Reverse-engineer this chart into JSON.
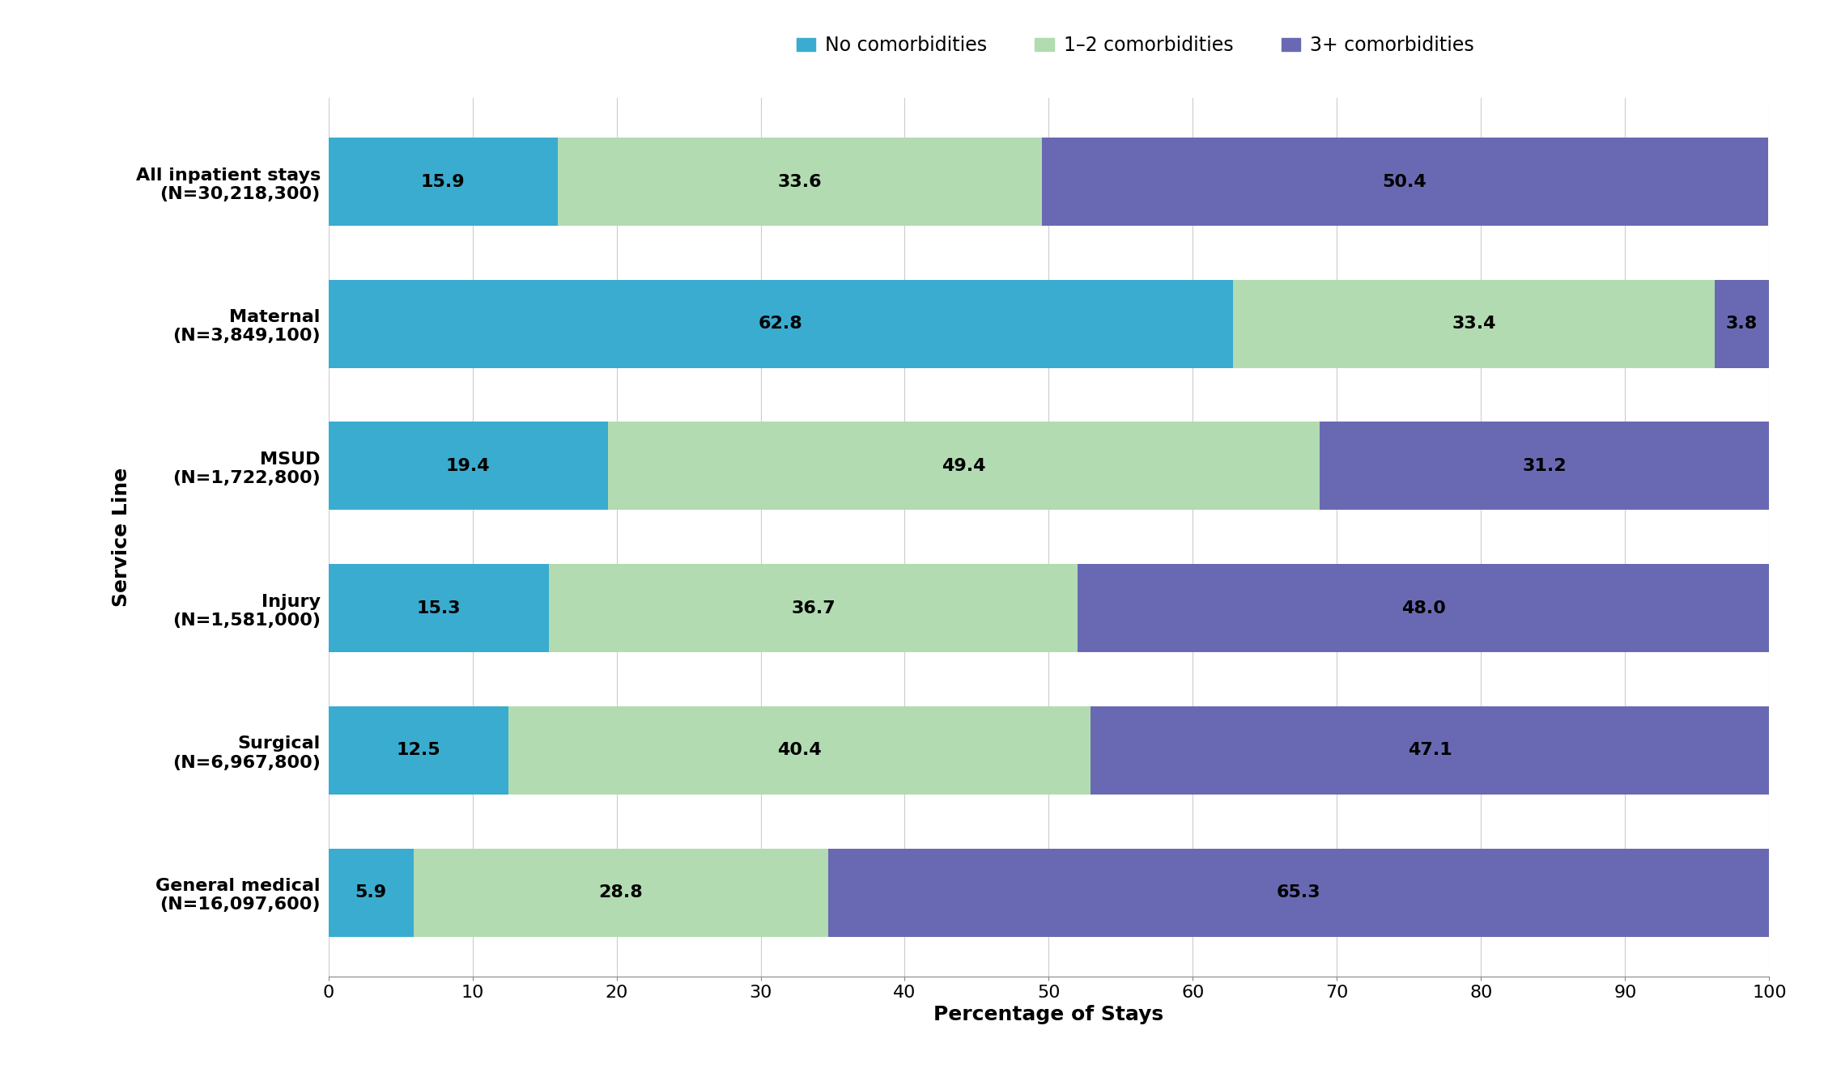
{
  "categories": [
    "All inpatient stays\n(N=30,218,300)",
    "Maternal\n(N=3,849,100)",
    "MSUD\n(N=1,722,800)",
    "Injury\n(N=1,581,000)",
    "Surgical\n(N=6,967,800)",
    "General medical\n(N=16,097,600)"
  ],
  "no_comorbidities": [
    15.9,
    62.8,
    19.4,
    15.3,
    12.5,
    5.9
  ],
  "one_two_comorbidities": [
    33.6,
    33.4,
    49.4,
    36.7,
    40.4,
    28.8
  ],
  "three_plus_comorbidities": [
    50.4,
    3.8,
    31.2,
    48.0,
    47.1,
    65.3
  ],
  "color_no": "#3aaccf",
  "color_12": "#b2dbb2",
  "color_3plus": "#6969b3",
  "legend_labels": [
    "No comorbidities",
    "1–2 comorbidities",
    "3+ comorbidities"
  ],
  "xlabel": "Percentage of Stays",
  "ylabel": "Service Line",
  "xlim": [
    0,
    100
  ],
  "xticks": [
    0,
    10,
    20,
    30,
    40,
    50,
    60,
    70,
    80,
    90,
    100
  ],
  "bar_height": 0.62,
  "label_fontsize": 18,
  "tick_fontsize": 16,
  "value_fontsize": 16,
  "legend_fontsize": 17,
  "background_color": "#ffffff"
}
